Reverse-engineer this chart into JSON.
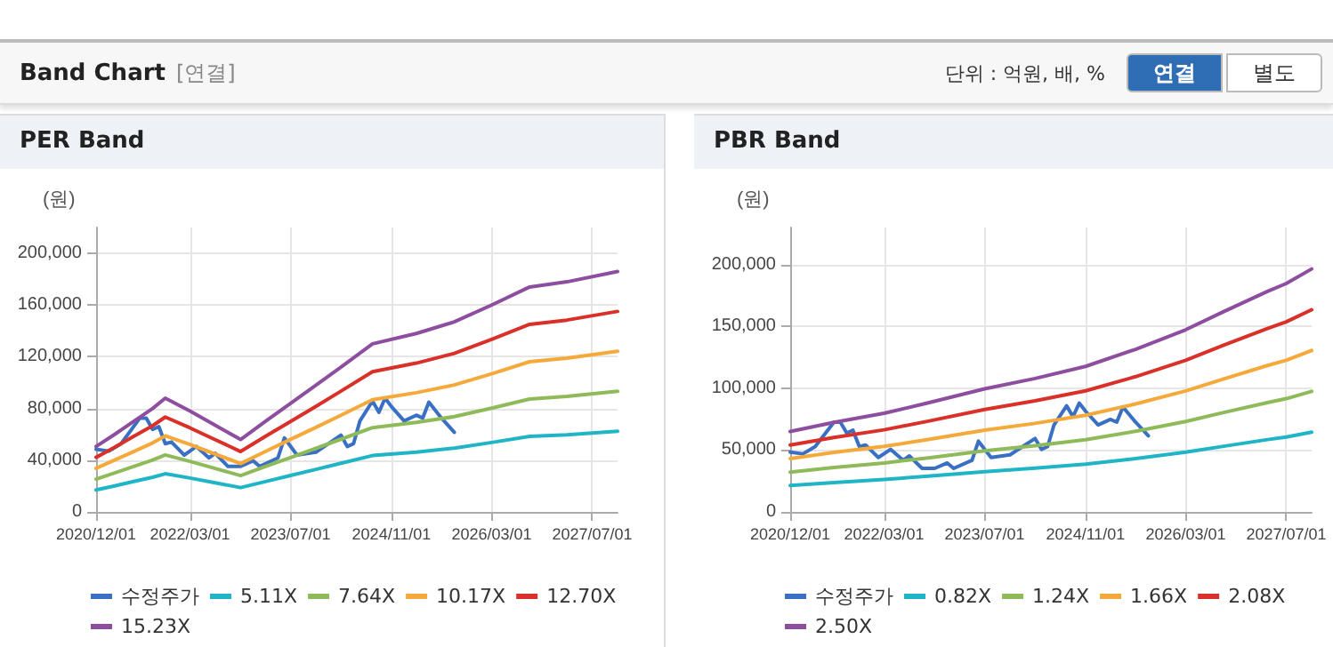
{
  "chart_data": [
    {
      "type": "other",
      "title": "Band Chart",
      "annotations": [
        "[연결]",
        "단위 : 억원, 배, %",
        "연결",
        "별도"
      ]
    },
    {
      "type": "line",
      "title": "PER Band",
      "ylabel": "(원)",
      "legend": "bottom",
      "grid": true,
      "marker": "none",
      "line_style": "solid",
      "x": [
        "2020-12",
        "2021-03",
        "2021-06",
        "2021-09",
        "2021-11",
        "2022-03",
        "2022-07",
        "2022-11",
        "2023-03",
        "2023-07",
        "2023-11",
        "2024-03",
        "2024-08",
        "2025-03",
        "2025-09",
        "2026-03",
        "2026-09",
        "2027-03",
        "2027-11"
      ],
      "xlim": [
        "2020-12-01",
        "2027-11-01"
      ],
      "xticks": [
        {
          "value": "2020-12-01",
          "label": "2020/12/01"
        },
        {
          "value": "2022-03-01",
          "label": "2022/03/01"
        },
        {
          "value": "2023-07-01",
          "label": "2023/07/01"
        },
        {
          "value": "2024-11-01",
          "label": "2024/11/01"
        },
        {
          "value": "2026-03-01",
          "label": "2026/03/01"
        },
        {
          "value": "2027-07-01",
          "label": "2027/07/01"
        }
      ],
      "ylim": [
        0,
        220000
      ],
      "yticks": [
        {
          "value": 0,
          "label": "0"
        },
        {
          "value": 40000,
          "label": "40,000"
        },
        {
          "value": 80000,
          "label": "80,000"
        },
        {
          "value": 120000,
          "label": "120,000"
        },
        {
          "value": 160000,
          "label": "160,000"
        },
        {
          "value": 200000,
          "label": "200,000"
        }
      ],
      "series": [
        {
          "name": "수정주가",
          "color": "#3a70c4",
          "x": [
            "2020-12",
            "2021-02",
            "2021-04",
            "2021-07",
            "2021-08",
            "2021-09",
            "2021-10",
            "2021-11",
            "2021-12",
            "2022-02",
            "2022-04",
            "2022-06",
            "2022-07",
            "2022-09",
            "2022-11",
            "2023-01",
            "2023-02",
            "2023-05",
            "2023-06",
            "2023-08",
            "2023-11",
            "2024-01",
            "2024-03",
            "2024-04",
            "2024-05",
            "2024-06",
            "2024-08",
            "2024-09",
            "2024-10",
            "2024-11",
            "2025-01",
            "2025-03",
            "2025-04",
            "2025-05",
            "2025-07",
            "2025-09"
          ],
          "values": [
            48400,
            47000,
            52800,
            72600,
            72600,
            63800,
            66000,
            52800,
            54100,
            44000,
            50600,
            41800,
            45300,
            35200,
            35200,
            39600,
            35200,
            41800,
            57200,
            44000,
            46200,
            52800,
            59400,
            50600,
            52800,
            70400,
            85800,
            77000,
            88000,
            81400,
            70400,
            74800,
            72600,
            84900,
            72600,
            61600
          ]
        },
        {
          "name": "5.11X",
          "color": "#1fb5c6",
          "values": [
            17000,
            20100,
            23500,
            26800,
            29500,
            26200,
            22500,
            18800,
            23500,
            28200,
            32900,
            37600,
            43600,
            46300,
            49300,
            53700,
            58400,
            59700,
            62400
          ]
        },
        {
          "name": "7.64X",
          "color": "#8fba5a",
          "values": [
            25400,
            30100,
            35100,
            40100,
            44100,
            39100,
            33600,
            28100,
            35100,
            42100,
            49200,
            56200,
            65200,
            69200,
            73700,
            80300,
            87300,
            89300,
            93300
          ]
        },
        {
          "name": "10.17X",
          "color": "#f5a93a",
          "values": [
            33800,
            40100,
            46700,
            53400,
            58800,
            52100,
            44700,
            37400,
            46700,
            56100,
            65400,
            74800,
            86800,
            92200,
            98200,
            106800,
            116200,
            118900,
            124200
          ]
        },
        {
          "name": "12.70X",
          "color": "#d9302a",
          "values": [
            42200,
            50000,
            58400,
            66700,
            73400,
            65000,
            55900,
            46700,
            58400,
            70000,
            81700,
            93400,
            108400,
            115100,
            122600,
            133400,
            145100,
            148400,
            155100
          ]
        },
        {
          "name": "15.23X",
          "color": "#8e4ea0",
          "values": [
            50600,
            60000,
            70000,
            80000,
            88000,
            78000,
            67000,
            56000,
            70000,
            84000,
            98000,
            112000,
            130000,
            138000,
            147000,
            160000,
            174000,
            178000,
            186000
          ]
        }
      ]
    },
    {
      "type": "line",
      "title": "PBR Band",
      "ylabel": "(원)",
      "legend": "bottom",
      "grid": true,
      "marker": "none",
      "line_style": "solid",
      "x": [
        "2020-12",
        "2021-07",
        "2022-03",
        "2022-10",
        "2023-07",
        "2024-03",
        "2024-11",
        "2025-07",
        "2026-03",
        "2026-09",
        "2027-04",
        "2027-07",
        "2027-11"
      ],
      "xlim": [
        "2020-12-01",
        "2027-11-01"
      ],
      "xticks": [
        {
          "value": "2020-12-01",
          "label": "2020/12/01"
        },
        {
          "value": "2022-03-01",
          "label": "2022/03/01"
        },
        {
          "value": "2023-07-01",
          "label": "2023/07/01"
        },
        {
          "value": "2024-11-01",
          "label": "2024/11/01"
        },
        {
          "value": "2026-03-01",
          "label": "2026/03/01"
        },
        {
          "value": "2027-07-01",
          "label": "2027/07/01"
        }
      ],
      "ylim": [
        0,
        230000
      ],
      "yticks": [
        {
          "value": 0,
          "label": "0"
        },
        {
          "value": 50000,
          "label": "50,000"
        },
        {
          "value": 100000,
          "label": "100,000"
        },
        {
          "value": 150000,
          "label": "150,000"
        },
        {
          "value": 200000,
          "label": "200,000"
        }
      ],
      "series": [
        {
          "name": "수정주가",
          "color": "#3a70c4",
          "x": [
            "2020-12",
            "2021-02",
            "2021-04",
            "2021-07",
            "2021-08",
            "2021-09",
            "2021-10",
            "2021-11",
            "2021-12",
            "2022-02",
            "2022-04",
            "2022-06",
            "2022-07",
            "2022-09",
            "2022-11",
            "2023-01",
            "2023-02",
            "2023-05",
            "2023-06",
            "2023-08",
            "2023-11",
            "2024-01",
            "2024-03",
            "2024-04",
            "2024-05",
            "2024-06",
            "2024-08",
            "2024-09",
            "2024-10",
            "2024-11",
            "2025-01",
            "2025-03",
            "2025-04",
            "2025-05",
            "2025-07",
            "2025-09"
          ],
          "values": [
            48400,
            47000,
            52800,
            72600,
            72600,
            63800,
            66000,
            52800,
            54100,
            44000,
            50600,
            41800,
            45300,
            35200,
            35200,
            39600,
            35200,
            41800,
            57200,
            44000,
            46200,
            52800,
            59400,
            50600,
            52800,
            70400,
            85800,
            77000,
            88000,
            81400,
            70400,
            74800,
            72600,
            84900,
            72600,
            61600
          ]
        },
        {
          "name": "0.82X",
          "color": "#1fb5c6",
          "values": [
            21300,
            23700,
            26200,
            28900,
            32600,
            35400,
            38600,
            43100,
            48300,
            53100,
            58500,
            60600,
            64500
          ]
        },
        {
          "name": "1.24X",
          "color": "#8fba5a",
          "values": [
            32200,
            35900,
            39600,
            43700,
            49400,
            53500,
            58400,
            65200,
            73100,
            80400,
            88400,
            91600,
            97500
          ]
        },
        {
          "name": "1.66X",
          "color": "#f5a93a",
          "values": [
            43200,
            48100,
            53000,
            58600,
            66100,
            71600,
            78200,
            87300,
            97800,
            107600,
            118400,
            122600,
            130500
          ]
        },
        {
          "name": "2.08X",
          "color": "#d9302a",
          "values": [
            54100,
            60200,
            66400,
            73400,
            82800,
            89800,
            97900,
            109400,
            122600,
            134800,
            148300,
            153700,
            163500
          ]
        },
        {
          "name": "2.50X",
          "color": "#8e4ea0",
          "values": [
            65000,
            72400,
            79800,
            88200,
            99500,
            107900,
            117700,
            131500,
            147300,
            162000,
            178300,
            184700,
            196500
          ]
        }
      ]
    }
  ]
}
